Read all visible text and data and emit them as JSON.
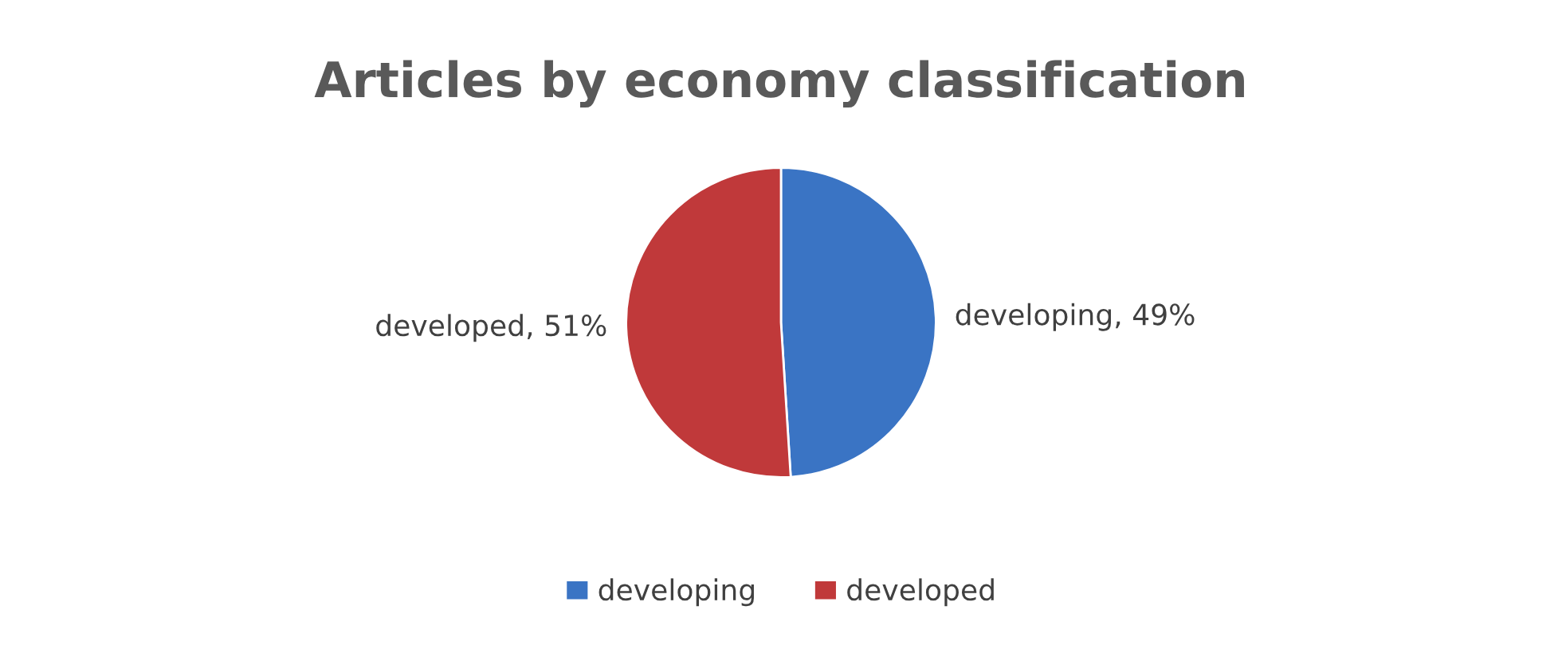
{
  "chart_data": {
    "type": "pie",
    "title": "Articles by economy classification",
    "categories": [
      "developing",
      "developed"
    ],
    "values": [
      49,
      51
    ],
    "colors": [
      "#3a74c4",
      "#c0393a"
    ],
    "value_labels": [
      "developing, 49%",
      "developed, 51%"
    ],
    "legend": "bottom"
  }
}
